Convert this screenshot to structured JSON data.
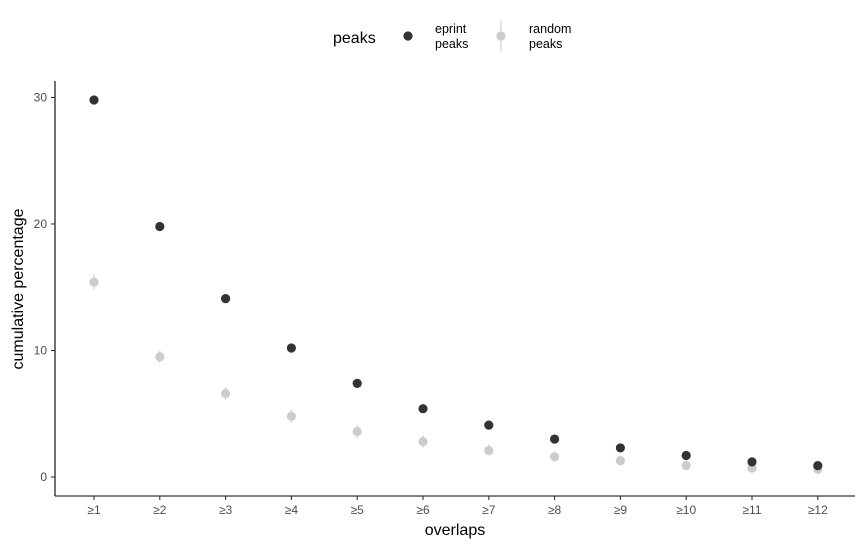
{
  "chart_data": {
    "type": "scatter",
    "title": "",
    "xlabel": "overlaps",
    "ylabel": "cumulative percentage",
    "categories": [
      "≥1",
      "≥2",
      "≥3",
      "≥4",
      "≥5",
      "≥6",
      "≥7",
      "≥8",
      "≥9",
      "≥10",
      "≥11",
      "≥12"
    ],
    "y_ticks": [
      0,
      10,
      20,
      30
    ],
    "ylim": [
      -1.5,
      31.3
    ],
    "grid": false,
    "legend": {
      "title": "peaks",
      "placement": "top",
      "entries": [
        {
          "line1": "eprint",
          "line2": "peaks"
        },
        {
          "line1": "random",
          "line2": "peaks"
        }
      ]
    },
    "series": [
      {
        "name": "eprint peaks",
        "color": "#333333",
        "values": [
          29.8,
          19.8,
          14.1,
          10.2,
          7.4,
          5.4,
          4.1,
          3.0,
          2.3,
          1.7,
          1.2,
          0.9
        ]
      },
      {
        "name": "random peaks",
        "color": "#cccccc",
        "values": [
          15.4,
          9.5,
          6.6,
          4.8,
          3.6,
          2.8,
          2.1,
          1.6,
          1.3,
          0.9,
          0.7,
          0.6
        ],
        "error_low": [
          14.8,
          9.0,
          6.1,
          4.3,
          3.1,
          2.3,
          1.7,
          1.2,
          0.9,
          0.6,
          0.4,
          0.3
        ],
        "error_high": [
          16.0,
          10.0,
          7.1,
          5.3,
          4.1,
          3.3,
          2.6,
          2.0,
          1.7,
          1.2,
          1.0,
          0.9
        ]
      }
    ]
  }
}
